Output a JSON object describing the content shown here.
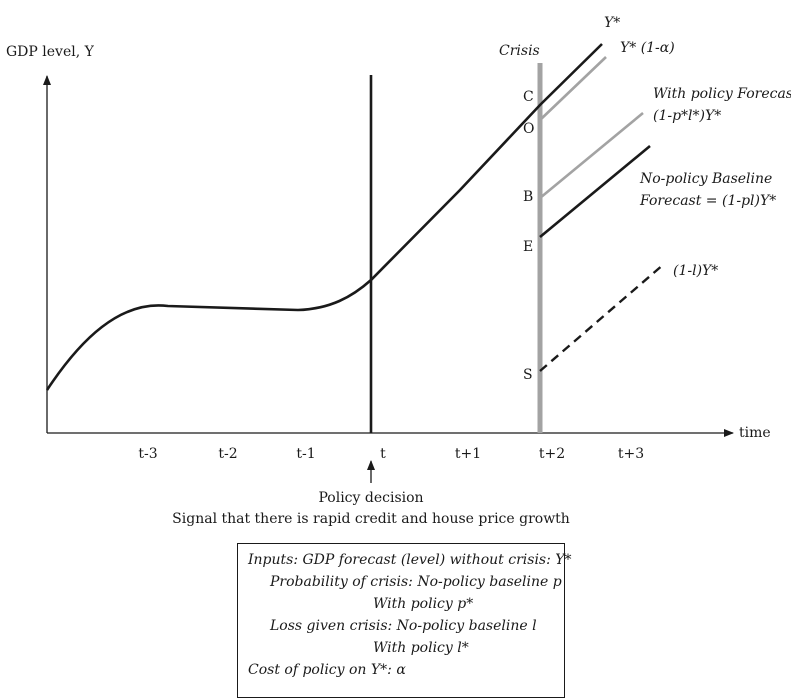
{
  "axes": {
    "y_label": "GDP level, Y",
    "x_label": "time",
    "x_ticks": [
      "t-3",
      "t-2",
      "t-1",
      "t",
      "t+1",
      "t+2",
      "t+3"
    ]
  },
  "crisis_label": "Crisis",
  "points": {
    "C": "C",
    "O": "O",
    "B": "B",
    "E": "E",
    "S": "S"
  },
  "line_labels": {
    "ystar": "Y*",
    "ystar_cost": "Y* (1-α)",
    "with_policy_1": "With policy Forecast",
    "with_policy_2": "(1-p*l*)Y*",
    "no_policy_1": "No-policy Baseline",
    "no_policy_2": "Forecast = (1-pl)Y*",
    "loss": "(1-l)Y*"
  },
  "decision": {
    "title": "Policy decision",
    "signal": "Signal that there is rapid credit and house price growth"
  },
  "inputs": {
    "line1": "Inputs:   GDP forecast (level) without crisis: Y*",
    "line2": "Probability of crisis: No-policy baseline p",
    "line3": "With policy p*",
    "line4": "Loss given crisis: No-policy baseline l",
    "line5": "With policy l*",
    "line6": "Cost of policy on Y*: α"
  },
  "colors": {
    "black": "#1a1a1a",
    "gray": "#a3a3a3"
  }
}
